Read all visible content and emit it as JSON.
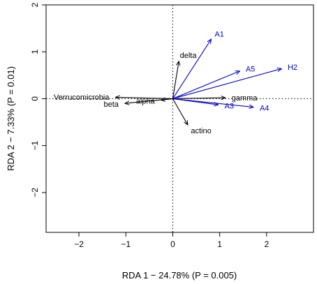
{
  "chart_data": {
    "type": "scatter",
    "subtype": "rda-biplot",
    "title": "",
    "xlabel": "RDA 1 − 24.78% (P = 0.005)",
    "ylabel": "RDA 2 − 7.33% (P = 0.01)",
    "xlim": [
      -2.7,
      3.0
    ],
    "ylim": [
      -2.85,
      2.0
    ],
    "xticks": [
      -2,
      -1,
      0,
      1,
      2
    ],
    "yticks": [
      -2,
      -1,
      0,
      1,
      2
    ],
    "xtick_labels": [
      "−2",
      "−1",
      "0",
      "1",
      "2"
    ],
    "ytick_labels": [
      "−2",
      "−1",
      "0",
      "1",
      "2"
    ],
    "grid": false,
    "reference_lines": {
      "x": 0,
      "y": 0,
      "style": "dotted"
    },
    "colors": {
      "environment": "#0000cc",
      "taxa": "#000000"
    },
    "series": [
      {
        "name": "",
        "color": "#000000",
        "vectors": [
          {
            "label": "delta",
            "x": 0.13,
            "y": 0.8
          },
          {
            "label": "Verrucomicrobia",
            "x": -1.22,
            "y": 0.03
          },
          {
            "label": "beta",
            "x": -1.02,
            "y": -0.1
          },
          {
            "label": "alpha",
            "x": -0.25,
            "y": -0.03
          },
          {
            "label": "gamma",
            "x": 1.12,
            "y": 0.02
          },
          {
            "label": "actino",
            "x": 0.32,
            "y": -0.56
          }
        ]
      },
      {
        "name": "",
        "color": "#0000cc",
        "vectors": [
          {
            "label": "A1",
            "x": 0.82,
            "y": 1.27
          },
          {
            "label": "A5",
            "x": 1.43,
            "y": 0.59
          },
          {
            "label": "H2",
            "x": 2.32,
            "y": 0.64
          },
          {
            "label": "A3",
            "x": 0.97,
            "y": -0.13
          },
          {
            "label": "A4",
            "x": 1.72,
            "y": -0.18
          }
        ]
      }
    ]
  }
}
